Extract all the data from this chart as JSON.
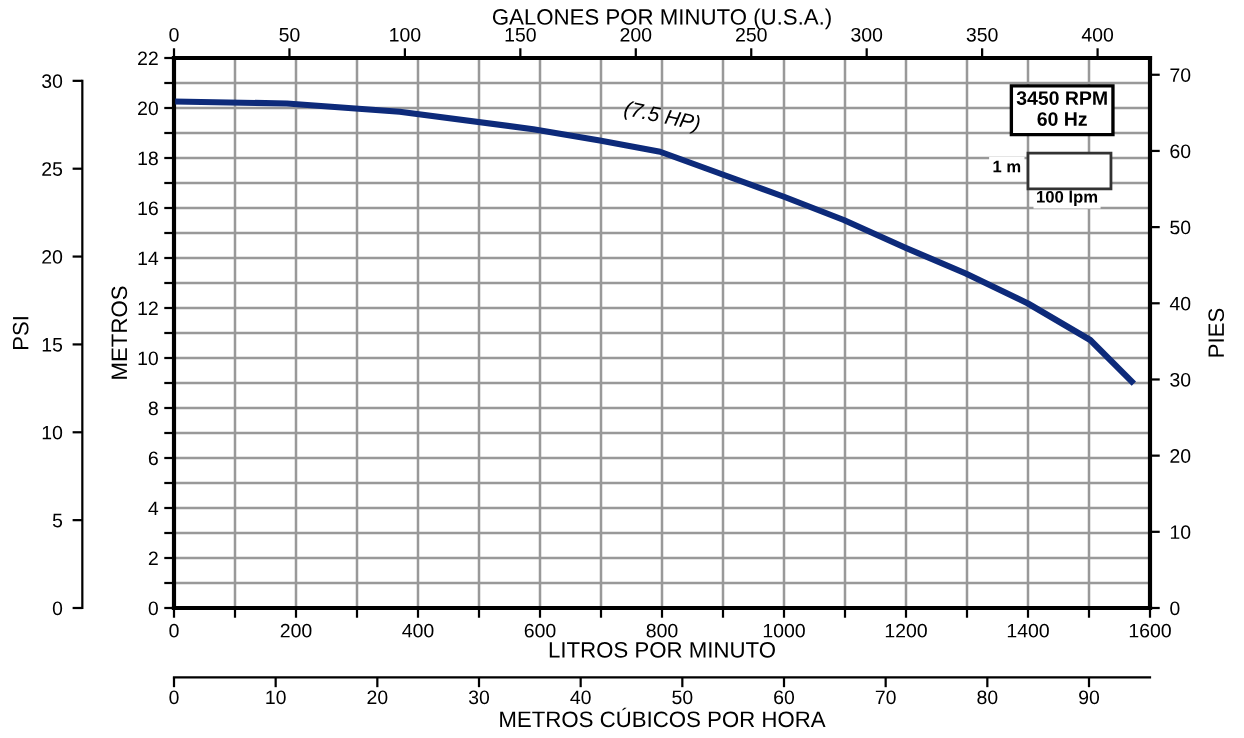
{
  "chart_data": {
    "type": "line",
    "xlabel": "LITROS POR MINUTO",
    "ylabel": "METROS",
    "y2label": "PIES",
    "y3label": "PSI",
    "x2label": "GALONES POR MINUTO (U.S.A.)",
    "x": [
      0,
      185,
      370,
      589,
      698,
      797,
      895,
      1000,
      1098,
      1200,
      1298,
      1400,
      1502,
      1570
    ],
    "series": [
      {
        "color": "#0d2a7a",
        "values": [
          20.26,
          20.18,
          19.85,
          19.15,
          18.7,
          18.25,
          17.38,
          16.45,
          15.52,
          14.4,
          13.38,
          12.18,
          10.72,
          9.06
        ]
      }
    ],
    "xlim": [
      0,
      1600
    ],
    "xticks": [
      0,
      {
        "value": 100,
        "label": null
      },
      200,
      {
        "value": 300,
        "label": null
      },
      400,
      {
        "value": 500,
        "label": null
      },
      600,
      {
        "value": 700,
        "label": null
      },
      800,
      {
        "value": 900,
        "label": null
      },
      1000,
      {
        "value": 1100,
        "label": null
      },
      1200,
      {
        "value": 1300,
        "label": null
      },
      1400,
      {
        "value": 1500,
        "label": null
      },
      1600
    ],
    "ylim": [
      0,
      22
    ],
    "yticks": [
      0,
      {
        "value": 1,
        "label": null
      },
      2,
      {
        "value": 3,
        "label": null
      },
      4,
      {
        "value": 5,
        "label": null
      },
      6,
      {
        "value": 7,
        "label": null
      },
      8,
      {
        "value": 9,
        "label": null
      },
      10,
      {
        "value": 11,
        "label": null
      },
      12,
      {
        "value": 13,
        "label": null
      },
      14,
      {
        "value": 15,
        "label": null
      },
      16,
      {
        "value": 17,
        "label": null
      },
      18,
      {
        "value": 19,
        "label": null
      },
      20,
      {
        "value": 21,
        "label": null
      },
      22
    ],
    "x2lim": [
      0,
      422.7
    ],
    "x2ticks": [
      0,
      50,
      100,
      150,
      200,
      250,
      300,
      350,
      400
    ],
    "y2lim": [
      0,
      72.2
    ],
    "y2ticks": [
      0,
      10,
      20,
      30,
      40,
      50,
      60,
      70
    ],
    "y3lim": [
      0,
      31.3
    ],
    "y3ticks": [
      0,
      5,
      10,
      15,
      20,
      25,
      30
    ],
    "grid": true,
    "line_style": "solid",
    "marker": "none",
    "annotations": [
      "(7.5 HP)",
      "3450 RPM\n60 Hz",
      "1 m",
      "100 lpm",
      "METROS CÚBICOS POR HORA",
      "0",
      "10",
      "20",
      "30",
      "40",
      "50",
      "60",
      "70",
      "80",
      "90"
    ]
  }
}
